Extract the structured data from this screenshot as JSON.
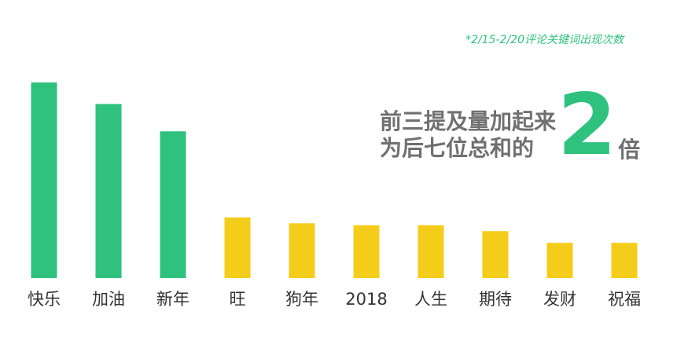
{
  "note": "*2/15-2/20评论关键词出现次数",
  "headline": {
    "line1": "前三提及量加起来",
    "line2": "为后七位总和的",
    "number": "2",
    "unit": "倍"
  },
  "colors": {
    "top3": "#2ec27e",
    "rest": "#f4cd1a",
    "headline_number": "#2ec27e",
    "headline_text": "#707070"
  },
  "chart_data": {
    "type": "bar",
    "categories": [
      "快乐",
      "加油",
      "新年",
      "旺",
      "狗年",
      "2018",
      "人生",
      "期待",
      "发财",
      "祝福"
    ],
    "values": [
      100,
      89,
      75,
      31,
      28,
      27,
      27,
      24,
      18,
      18
    ],
    "highlight_count": 3,
    "ylim": [
      0,
      100
    ],
    "grid": false,
    "yaxis_visible": false
  }
}
